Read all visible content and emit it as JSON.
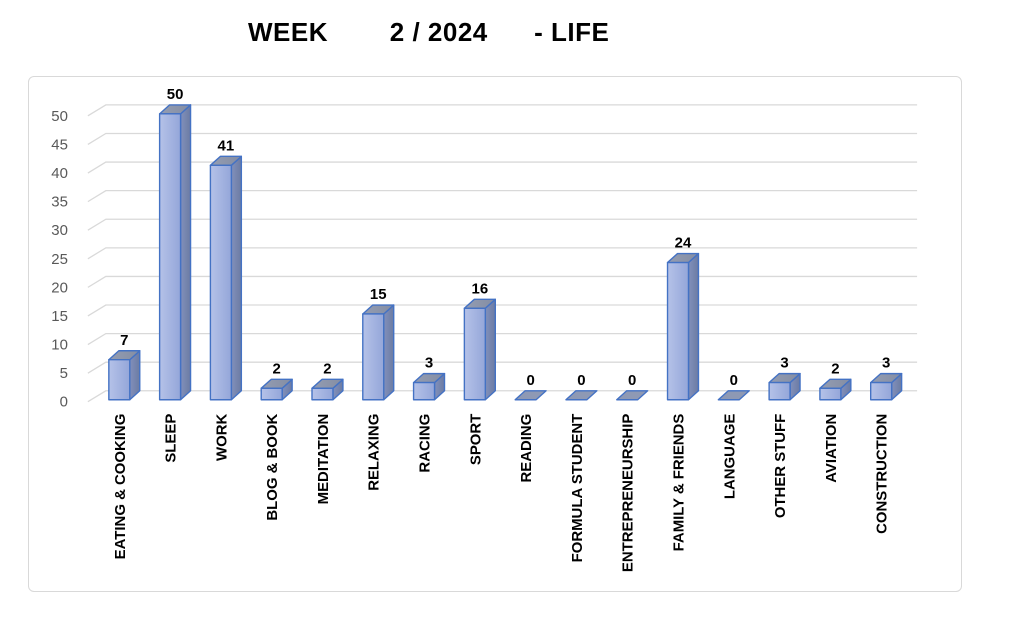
{
  "title": {
    "text": "WEEK        2 / 2024      - LIFE"
  },
  "chart_data": {
    "type": "bar",
    "projection": "3d",
    "title": "WEEK 2 / 2024 - LIFE",
    "categories": [
      "EATING & COOKING",
      "SLEEP",
      "WORK",
      "BLOG & BOOK",
      "MEDITATION",
      "RELAXING",
      "RACING",
      "SPORT",
      "READING",
      "FORMULA STUDENT",
      "ENTREPRENEURSHIP",
      "FAMILY & FRIENDS",
      "LANGUAGE",
      "OTHER STUFF",
      "AVIATION",
      "CONSTRUCTION"
    ],
    "values": [
      7,
      50,
      41,
      2,
      2,
      15,
      3,
      16,
      0,
      0,
      0,
      24,
      0,
      3,
      2,
      3
    ],
    "data_labels": [
      7,
      50,
      41,
      2,
      2,
      15,
      3,
      16,
      0,
      0,
      0,
      24,
      0,
      3,
      2,
      3
    ],
    "xlabel": "",
    "ylabel": "",
    "ylim": [
      0,
      50
    ],
    "ytick_step": 5,
    "yticks": [
      0,
      5,
      10,
      15,
      20,
      25,
      30,
      35,
      40,
      45,
      50
    ],
    "grid": true,
    "legend": "none",
    "colors": {
      "bar_front_light": "#b5c2e8",
      "bar_front_dark": "#94a6d9",
      "bar_top_light": "#949db2",
      "bar_top_dark": "#848da3",
      "bar_side_light": "#8290bb",
      "bar_side_dark": "#6b7ba3",
      "bar_zero_fill": "#8e99b4",
      "bar_outline": "#4472c4",
      "gridline": "#d9d9d9",
      "axis_text": "#595959",
      "label_text": "#000000",
      "frame_border": "#d9d9d9"
    }
  }
}
